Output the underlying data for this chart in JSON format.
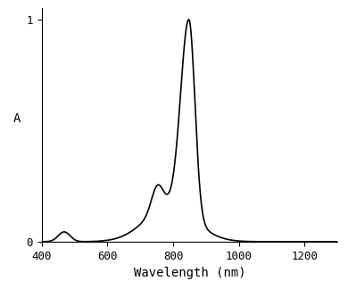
{
  "xlabel": "Wavelength (nm)",
  "ylabel": "A",
  "xlim": [
    400,
    1300
  ],
  "ylim": [
    0,
    1.05
  ],
  "xticks": [
    400,
    600,
    800,
    1000,
    1200
  ],
  "yticks": [
    0,
    1
  ],
  "line_color": "#000000",
  "line_width": 1.2,
  "background_color": "#ffffff"
}
